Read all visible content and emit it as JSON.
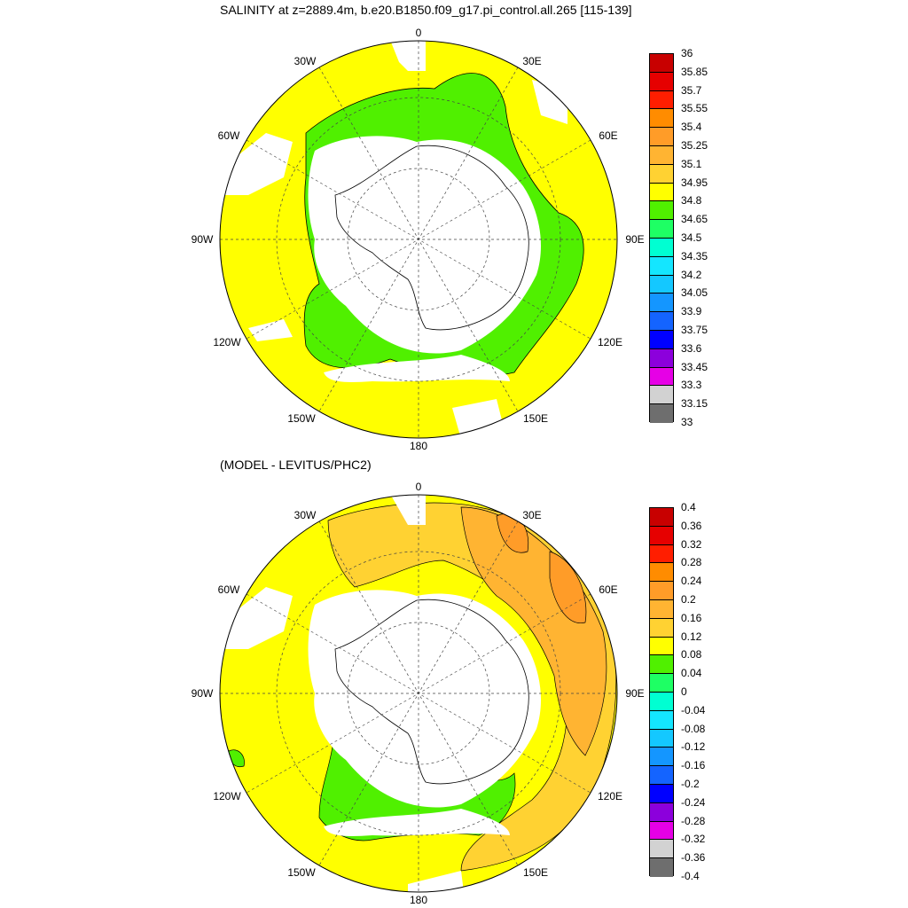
{
  "top": {
    "title": "SALINITY at z=2889.4m, b.e20.B1850.f09_g17.pi_control.all.265 [115-139]",
    "lon_labels": {
      "n": "0",
      "nne": "30E",
      "ene": "60E",
      "e": "90E",
      "ese": "120E",
      "sse": "150E",
      "s": "180",
      "ssw": "150W",
      "wsw": "120W",
      "w": "90W",
      "wnw": "60W",
      "nnw": "30W"
    },
    "colorbar": {
      "labels": [
        "36",
        "35.85",
        "35.7",
        "35.55",
        "35.4",
        "35.25",
        "35.1",
        "34.95",
        "34.8",
        "34.65",
        "34.5",
        "34.35",
        "34.2",
        "34.05",
        "33.9",
        "33.75",
        "33.6",
        "33.45",
        "33.3",
        "33.15",
        "33"
      ],
      "colors": [
        "#c80000",
        "#e60000",
        "#ff1e00",
        "#ff8c00",
        "#ff9c28",
        "#ffb432",
        "#ffd232",
        "#ffff00",
        "#50f000",
        "#1eff64",
        "#00ffd2",
        "#14e6ff",
        "#14c8ff",
        "#1496ff",
        "#1464ff",
        "#0000ff",
        "#8c00dc",
        "#e600e6",
        "#d2d2d2",
        "#6e6e6e"
      ]
    }
  },
  "bottom": {
    "title": "(MODEL - LEVITUS/PHC2)",
    "lon_labels": {
      "n": "0",
      "nne": "30E",
      "ene": "60E",
      "e": "90E",
      "ese": "120E",
      "sse": "150E",
      "s": "180",
      "ssw": "150W",
      "wsw": "120W",
      "w": "90W",
      "wnw": "60W",
      "nnw": "30W"
    },
    "colorbar": {
      "labels": [
        "0.4",
        "0.36",
        "0.32",
        "0.28",
        "0.24",
        "0.2",
        "0.16",
        "0.12",
        "0.08",
        "0.04",
        "0",
        "-0.04",
        "-0.08",
        "-0.12",
        "-0.16",
        "-0.2",
        "-0.24",
        "-0.28",
        "-0.32",
        "-0.36",
        "-0.4"
      ],
      "colors": [
        "#c80000",
        "#e60000",
        "#ff1e00",
        "#ff8c00",
        "#ff9c28",
        "#ffb432",
        "#ffd232",
        "#ffff00",
        "#50f000",
        "#1eff64",
        "#00ffd2",
        "#14e6ff",
        "#14c8ff",
        "#1496ff",
        "#1464ff",
        "#0000ff",
        "#8c00dc",
        "#e600e6",
        "#d2d2d2",
        "#6e6e6e"
      ]
    }
  }
}
